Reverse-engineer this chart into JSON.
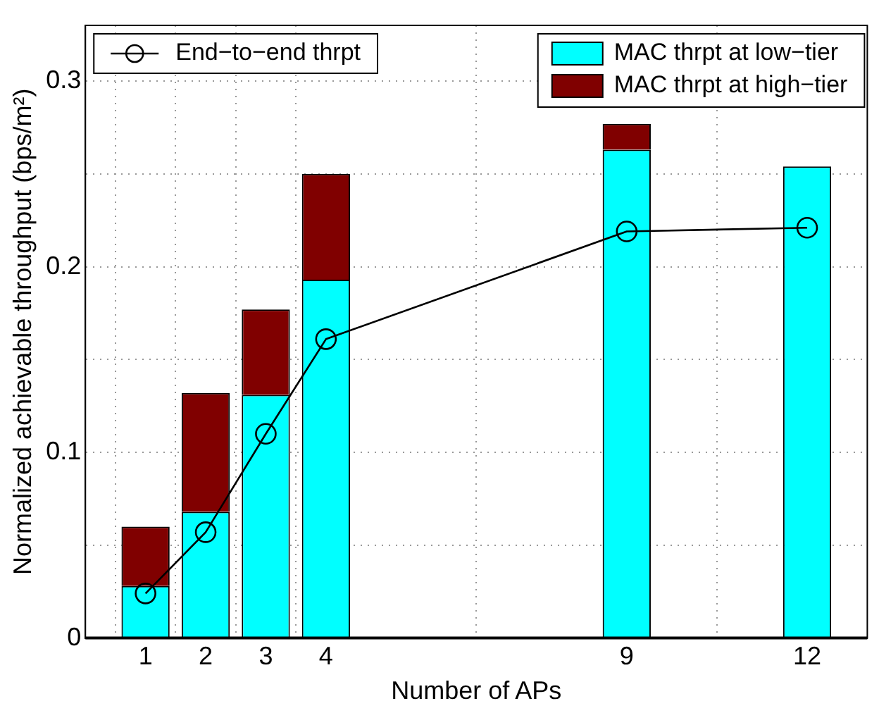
{
  "chart_data": {
    "type": "bar",
    "stacked": true,
    "xlabel": "Number of APs",
    "ylabel": "Normalized achievable throughput (bps/m²)",
    "x": [
      1,
      2,
      3,
      4,
      9,
      12
    ],
    "series": [
      {
        "name": "MAC thrpt at low−tier",
        "color": "#00ffff",
        "values": [
          0.028,
          0.068,
          0.131,
          0.193,
          0.263,
          0.254
        ]
      },
      {
        "name": "MAC thrpt at high−tier",
        "color": "#800000",
        "values": [
          0.032,
          0.064,
          0.046,
          0.057,
          0.014,
          null
        ]
      },
      {
        "name": "End−to−end thrpt",
        "type": "line",
        "color": "#000000",
        "marker": "circle",
        "values": [
          0.024,
          0.057,
          0.11,
          0.161,
          0.219,
          0.221
        ]
      }
    ],
    "xlim": [
      0,
      13
    ],
    "xticks": [
      1,
      2,
      3,
      4,
      9,
      12
    ],
    "ylim": [
      0,
      0.33
    ],
    "yticks": [
      0,
      {
        "value": 0.05,
        "label": null
      },
      0.1,
      {
        "value": 0.15,
        "label": null
      },
      0.2,
      {
        "value": 0.25,
        "label": null
      },
      0.3
    ],
    "grid": true,
    "legend": "top"
  }
}
